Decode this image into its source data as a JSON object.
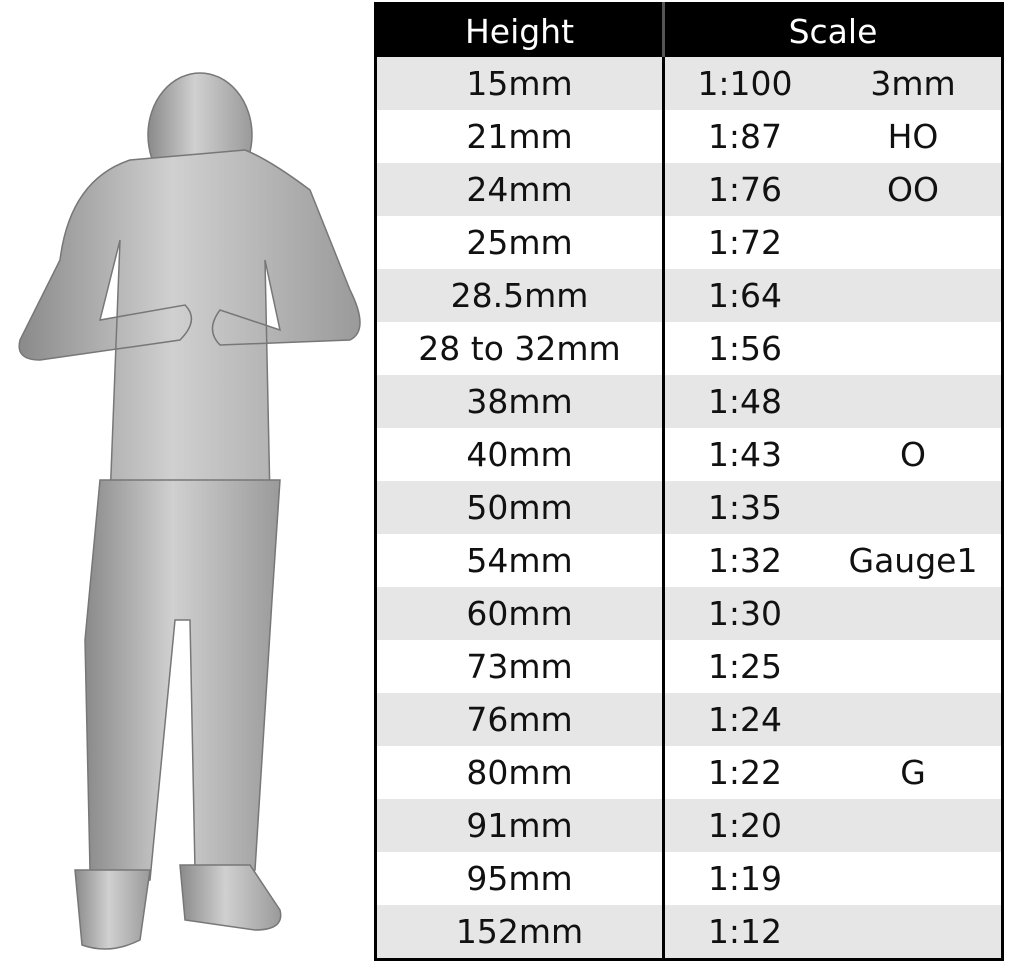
{
  "headers": {
    "height": "Height",
    "scale": "Scale"
  },
  "rows": [
    {
      "height": "15mm",
      "ratio": "1:100",
      "gauge": "3mm"
    },
    {
      "height": "21mm",
      "ratio": "1:87",
      "gauge": "HO"
    },
    {
      "height": "24mm",
      "ratio": "1:76",
      "gauge": "OO"
    },
    {
      "height": "25mm",
      "ratio": "1:72",
      "gauge": ""
    },
    {
      "height": "28.5mm",
      "ratio": "1:64",
      "gauge": ""
    },
    {
      "height": "28 to 32mm",
      "ratio": "1:56",
      "gauge": ""
    },
    {
      "height": "38mm",
      "ratio": "1:48",
      "gauge": ""
    },
    {
      "height": "40mm",
      "ratio": "1:43",
      "gauge": "O"
    },
    {
      "height": "50mm",
      "ratio": "1:35",
      "gauge": ""
    },
    {
      "height": "54mm",
      "ratio": "1:32",
      "gauge": "Gauge1"
    },
    {
      "height": "60mm",
      "ratio": "1:30",
      "gauge": ""
    },
    {
      "height": "73mm",
      "ratio": "1:25",
      "gauge": ""
    },
    {
      "height": "76mm",
      "ratio": "1:24",
      "gauge": ""
    },
    {
      "height": "80mm",
      "ratio": "1:22",
      "gauge": "G"
    },
    {
      "height": "91mm",
      "ratio": "1:20",
      "gauge": ""
    },
    {
      "height": "95mm",
      "ratio": "1:19",
      "gauge": ""
    },
    {
      "height": "152mm",
      "ratio": "1:12",
      "gauge": ""
    }
  ],
  "colors": {
    "header_bg": "#000000",
    "stripe": "#e6e6e6",
    "figure": "#b5b5b5"
  }
}
